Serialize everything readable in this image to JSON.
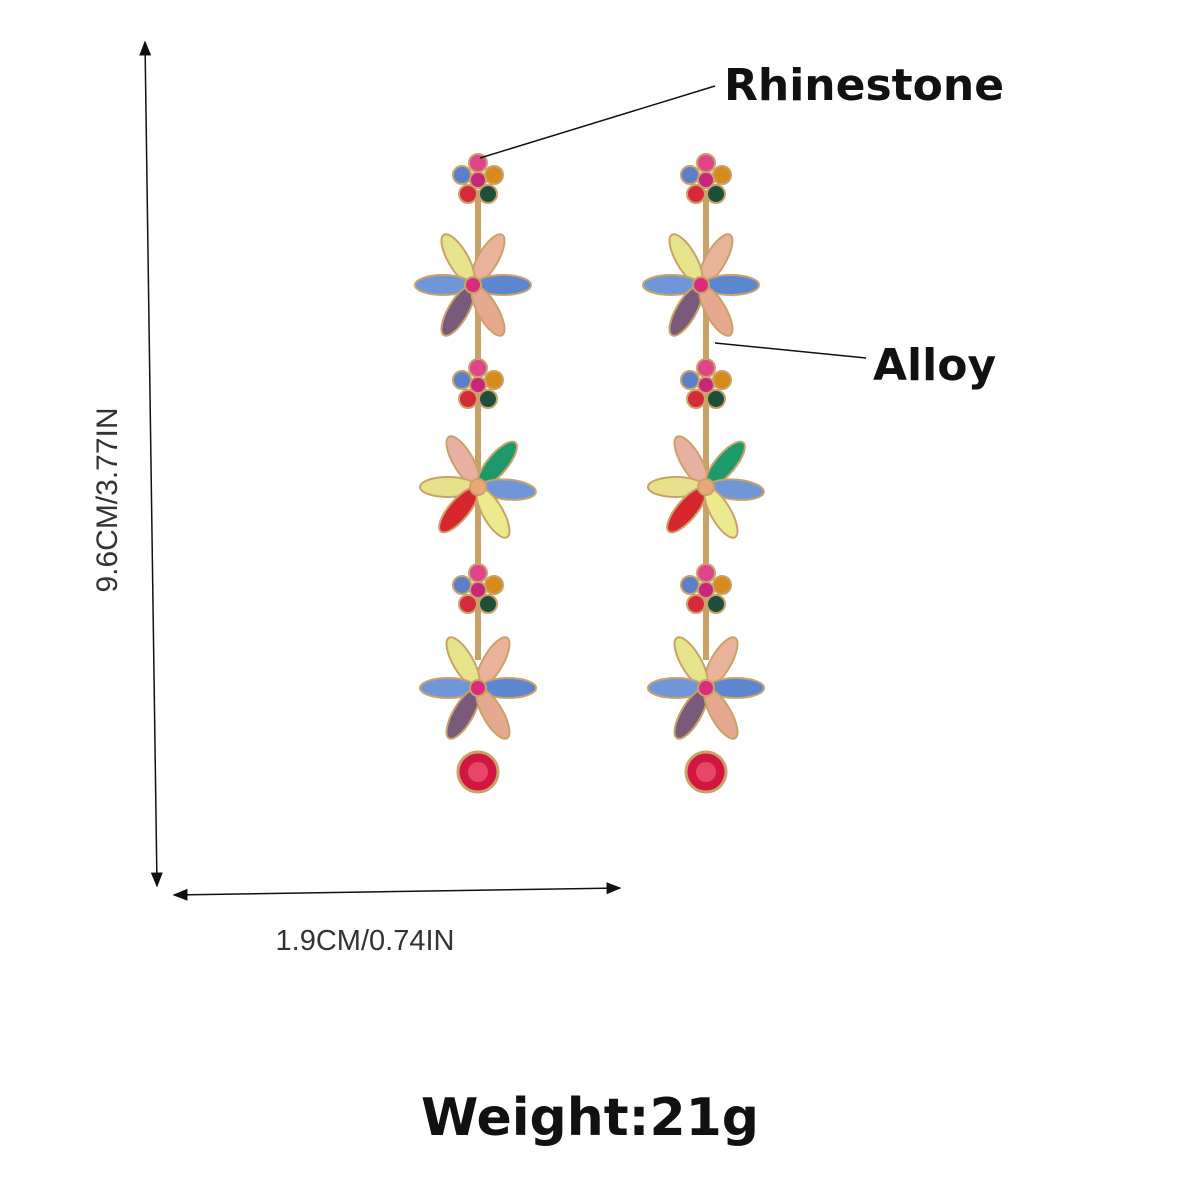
{
  "labels": {
    "material_1": "Rhinestone",
    "material_2": "Alloy"
  },
  "dimensions": {
    "height": "9.6CM/3.77IN",
    "width": "1.9CM/0.74IN"
  },
  "weight": "Weight:21g"
}
